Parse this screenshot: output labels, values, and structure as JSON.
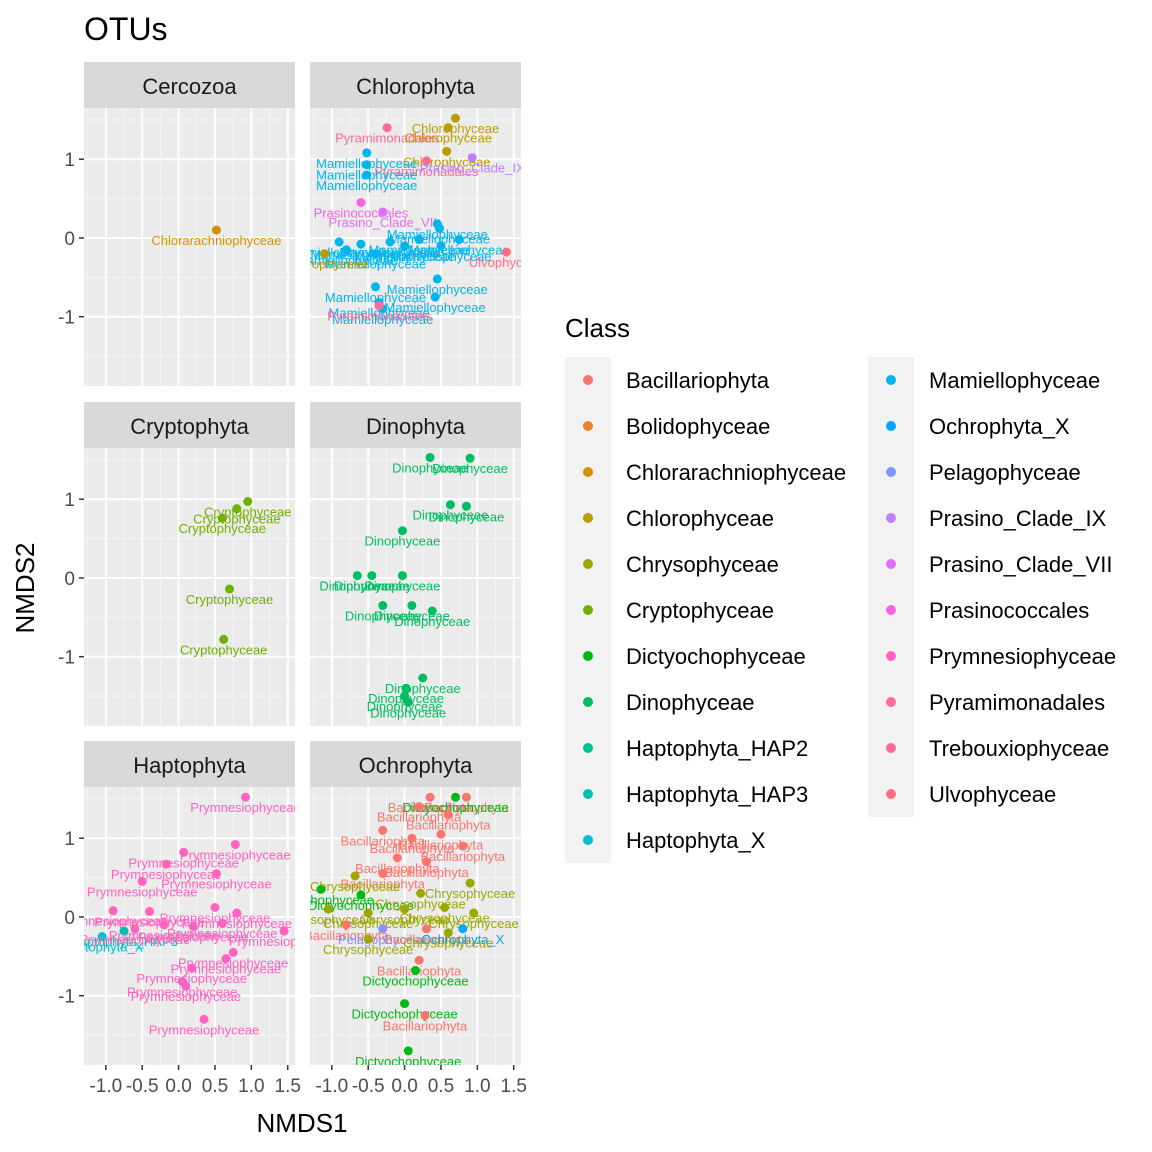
{
  "chart_data": {
    "type": "scatter",
    "title": "OTUs",
    "xlabel": "NMDS1",
    "ylabel": "NMDS2",
    "xlim": [
      -1.3,
      1.6
    ],
    "ylim": [
      -1.88,
      1.65
    ],
    "xticks": [
      "-1.0",
      "-0.5",
      "0.0",
      "0.5",
      "1.0",
      "1.5"
    ],
    "yticks": [
      "1",
      "0",
      "-1"
    ],
    "legend": {
      "title": "Class",
      "items": [
        {
          "name": "Bacillariophyta",
          "color": "#F8766D"
        },
        {
          "name": "Bolidophyceae",
          "color": "#E9842C"
        },
        {
          "name": "Chlorarachniophyceae",
          "color": "#D69100"
        },
        {
          "name": "Chlorophyceae",
          "color": "#BC9D00"
        },
        {
          "name": "Chrysophyceae",
          "color": "#9CA700"
        },
        {
          "name": "Cryptophyceae",
          "color": "#6FB000"
        },
        {
          "name": "Dictyochophyceae",
          "color": "#00B813"
        },
        {
          "name": "Dinophyceae",
          "color": "#00BD61"
        },
        {
          "name": "Haptophyta_HAP2",
          "color": "#00C08E"
        },
        {
          "name": "Haptophyta_HAP3",
          "color": "#00C0B4"
        },
        {
          "name": "Haptophyta_X",
          "color": "#00BDD4"
        },
        {
          "name": "Mamiellophyceae",
          "color": "#00B5EE"
        },
        {
          "name": "Ochrophyta_X",
          "color": "#00A7FF"
        },
        {
          "name": "Pelagophyceae",
          "color": "#7F96FF"
        },
        {
          "name": "Prasino_Clade_IX",
          "color": "#BC81FF"
        },
        {
          "name": "Prasino_Clade_VII",
          "color": "#E26EF7"
        },
        {
          "name": "Prasinococcales",
          "color": "#F863DF"
        },
        {
          "name": "Prymnesiophyceae",
          "color": "#FF62BF"
        },
        {
          "name": "Pyramimonadales",
          "color": "#FF6A9A"
        },
        {
          "name": "Trebouxiophyceae",
          "color": "#FF6C91"
        },
        {
          "name": "Ulvophyceae",
          "color": "#FF6E85"
        }
      ]
    },
    "panels": [
      {
        "name": "Cercozoa",
        "points": [
          {
            "x": 0.52,
            "y": 0.1,
            "class": "Chlorarachniophyceae",
            "label": "Chlorarachniophyceae"
          }
        ]
      },
      {
        "name": "Chlorophyta",
        "points": [
          {
            "x": -0.24,
            "y": 1.4,
            "class": "Pyramimonadales",
            "label": "Pyramimonadales"
          },
          {
            "x": 0.7,
            "y": 1.52,
            "class": "Chlorophyceae",
            "label": "Chlorophyceae"
          },
          {
            "x": 0.6,
            "y": 1.4,
            "class": "Chlorophyceae",
            "label": "Chlorophyceae"
          },
          {
            "x": 0.58,
            "y": 1.1,
            "class": "Chlorophyceae",
            "label": "Chlorophyceae"
          },
          {
            "x": 0.3,
            "y": 0.98,
            "class": "Pyramimonadales",
            "label": "Pyramimonadales"
          },
          {
            "x": 0.93,
            "y": 1.02,
            "class": "Prasino_Clade_IX",
            "label": "Prasino_Clade_IX"
          },
          {
            "x": -0.52,
            "y": 1.08,
            "class": "Mamiellophyceae",
            "label": "Mamiellophyceae"
          },
          {
            "x": -0.52,
            "y": 0.93,
            "class": "Mamiellophyceae",
            "label": "Mamiellophyceae"
          },
          {
            "x": -0.52,
            "y": 0.8,
            "class": "Mamiellophyceae",
            "label": "Mamiellophyceae"
          },
          {
            "x": -0.6,
            "y": 0.45,
            "class": "Prasinococcales",
            "label": "Prasinococcales"
          },
          {
            "x": -0.3,
            "y": 0.33,
            "class": "Prasino_Clade_VII",
            "label": "Prasino_Clade_VII"
          },
          {
            "x": 0.45,
            "y": 0.18,
            "class": "Mamiellophyceae",
            "label": "Mamiellophyceae"
          },
          {
            "x": 0.48,
            "y": 0.12,
            "class": "Mamiellophyceae",
            "label": "Mamiellophyceae"
          },
          {
            "x": -0.9,
            "y": -0.05,
            "class": "Mamiellophyceae",
            "label": "Mamiellophyceae"
          },
          {
            "x": -0.8,
            "y": -0.15,
            "class": "Mamiellophyceae",
            "label": "Mamiellophyceae"
          },
          {
            "x": -0.6,
            "y": -0.08,
            "class": "Mamiellophyceae",
            "label": "Mamiellophyceae"
          },
          {
            "x": -0.4,
            "y": -0.2,
            "class": "Mamiellophyceae",
            "label": "Mamiellophyceae"
          },
          {
            "x": -0.2,
            "y": -0.05,
            "class": "Mamiellophyceae",
            "label": "Mamiellophyceae"
          },
          {
            "x": 0.0,
            "y": -0.1,
            "class": "Mamiellophyceae",
            "label": "Mamiellophyceae"
          },
          {
            "x": 0.2,
            "y": -0.02,
            "class": "Mamiellophyceae",
            "label": "Mamiellophyceae"
          },
          {
            "x": 0.5,
            "y": -0.1,
            "class": "Mamiellophyceae",
            "label": "Mamiellophyceae"
          },
          {
            "x": 0.75,
            "y": -0.02,
            "class": "Mamiellophyceae",
            "label": "Mamiellophyceae"
          },
          {
            "x": -1.1,
            "y": -0.2,
            "class": "Chlorophyceae",
            "label": "Chlorophyceae"
          },
          {
            "x": 1.4,
            "y": -0.18,
            "class": "Ulvophyceae",
            "label": "Ulvophyceae"
          },
          {
            "x": 0.45,
            "y": -0.52,
            "class": "Mamiellophyceae",
            "label": "Mamiellophyceae"
          },
          {
            "x": -0.4,
            "y": -0.62,
            "class": "Mamiellophyceae",
            "label": "Mamiellophyceae"
          },
          {
            "x": 0.42,
            "y": -0.75,
            "class": "Mamiellophyceae",
            "label": "Mamiellophyceae"
          },
          {
            "x": -0.35,
            "y": -0.82,
            "class": "Mamiellophyceae",
            "label": "Mamiellophyceae"
          },
          {
            "x": -0.3,
            "y": -0.9,
            "class": "Mamiellophyceae",
            "label": "Mamiellophyceae"
          },
          {
            "x": -0.35,
            "y": -0.86,
            "class": "Pyramimonadales",
            "label": "Pyramimonadales"
          }
        ]
      },
      {
        "name": "Cryptophyta",
        "points": [
          {
            "x": 0.95,
            "y": 0.97,
            "class": "Cryptophyceae",
            "label": "Cryptophyceae"
          },
          {
            "x": 0.8,
            "y": 0.88,
            "class": "Cryptophyceae",
            "label": "Cryptophyceae"
          },
          {
            "x": 0.6,
            "y": 0.76,
            "class": "Cryptophyceae",
            "label": "Cryptophyceae"
          },
          {
            "x": 0.7,
            "y": -0.14,
            "class": "Cryptophyceae",
            "label": "Cryptophyceae"
          },
          {
            "x": 0.62,
            "y": -0.78,
            "class": "Cryptophyceae",
            "label": "Cryptophyceae"
          }
        ]
      },
      {
        "name": "Dinophyta",
        "points": [
          {
            "x": 0.35,
            "y": 1.53,
            "class": "Dinophyceae",
            "label": "Dinophyceae"
          },
          {
            "x": 0.9,
            "y": 1.52,
            "class": "Dinophyceae",
            "label": "Dinophyceae"
          },
          {
            "x": 0.63,
            "y": 0.93,
            "class": "Dinophyceae",
            "label": "Dinophyceae"
          },
          {
            "x": 0.85,
            "y": 0.91,
            "class": "Dinophyceae",
            "label": "Dinophyceae"
          },
          {
            "x": -0.03,
            "y": 0.6,
            "class": "Dinophyceae",
            "label": "Dinophyceae"
          },
          {
            "x": -0.65,
            "y": 0.03,
            "class": "Dinophyceae",
            "label": "Dinophyceae"
          },
          {
            "x": -0.45,
            "y": 0.03,
            "class": "Dinophyceae",
            "label": "Dinophyceae"
          },
          {
            "x": -0.03,
            "y": 0.03,
            "class": "Dinophyceae",
            "label": "Dinophyceae"
          },
          {
            "x": -0.3,
            "y": -0.35,
            "class": "Dinophyceae",
            "label": "Dinophyceae"
          },
          {
            "x": 0.1,
            "y": -0.35,
            "class": "Dinophyceae",
            "label": "Dinophyceae"
          },
          {
            "x": 0.38,
            "y": -0.42,
            "class": "Dinophyceae",
            "label": "Dinophyceae"
          },
          {
            "x": 0.25,
            "y": -1.27,
            "class": "Dinophyceae",
            "label": "Dinophyceae"
          },
          {
            "x": 0.02,
            "y": -1.4,
            "class": "Dinophyceae",
            "label": "Dinophyceae"
          },
          {
            "x": 0.0,
            "y": -1.5,
            "class": "Dinophyceae",
            "label": "Dinophyceae"
          },
          {
            "x": 0.05,
            "y": -1.58,
            "class": "Dinophyceae",
            "label": "Dinophyceae"
          }
        ]
      },
      {
        "name": "Haptophyta",
        "points": [
          {
            "x": 0.92,
            "y": 1.52,
            "class": "Prymnesiophyceae",
            "label": "Prymnesiophyceae"
          },
          {
            "x": 0.78,
            "y": 0.92,
            "class": "Prymnesiophyceae",
            "label": "Prymnesiophyceae"
          },
          {
            "x": 0.07,
            "y": 0.82,
            "class": "Prymnesiophyceae",
            "label": "Prymnesiophyceae"
          },
          {
            "x": -0.17,
            "y": 0.67,
            "class": "Prymnesiophyceae",
            "label": "Prymnesiophyceae"
          },
          {
            "x": 0.52,
            "y": 0.55,
            "class": "Prymnesiophyceae",
            "label": "Prymnesiophyceae"
          },
          {
            "x": -0.5,
            "y": 0.45,
            "class": "Prymnesiophyceae",
            "label": "Prymnesiophyceae"
          },
          {
            "x": -0.9,
            "y": 0.08,
            "class": "Prymnesiophyceae",
            "label": "Prymnesiophyceae"
          },
          {
            "x": -0.4,
            "y": 0.07,
            "class": "Prymnesiophyceae",
            "label": "Prymnesiophyceae"
          },
          {
            "x": 0.5,
            "y": 0.12,
            "class": "Prymnesiophyceae",
            "label": "Prymnesiophyceae"
          },
          {
            "x": 0.8,
            "y": 0.05,
            "class": "Prymnesiophyceae",
            "label": "Prymnesiophyceae"
          },
          {
            "x": 1.45,
            "y": -0.18,
            "class": "Prymnesiophyceae",
            "label": "Prymnesiophyceae"
          },
          {
            "x": -1.05,
            "y": -0.25,
            "class": "Haptophyta_X",
            "label": "Haptophyta_X"
          },
          {
            "x": -0.75,
            "y": -0.18,
            "class": "Haptophyta_HAP3",
            "label": "Haptophyta_HAP3"
          },
          {
            "x": -0.6,
            "y": -0.15,
            "class": "Prymnesiophyceae",
            "label": "Prymnesiophyceae"
          },
          {
            "x": -0.2,
            "y": -0.1,
            "class": "Prymnesiophyceae",
            "label": "Prymnesiophyceae"
          },
          {
            "x": 0.2,
            "y": -0.12,
            "class": "Prymnesiophyceae",
            "label": "Prymnesiophyceae"
          },
          {
            "x": 0.6,
            "y": -0.08,
            "class": "Prymnesiophyceae",
            "label": "Prymnesiophyceae"
          },
          {
            "x": 0.75,
            "y": -0.45,
            "class": "Prymnesiophyceae",
            "label": "Prymnesiophyceae"
          },
          {
            "x": 0.65,
            "y": -0.53,
            "class": "Prymnesiophyceae",
            "label": "Prymnesiophyceae"
          },
          {
            "x": 0.18,
            "y": -0.65,
            "class": "Prymnesiophyceae",
            "label": "Prymnesiophyceae"
          },
          {
            "x": 0.05,
            "y": -0.82,
            "class": "Prymnesiophyceae",
            "label": "Prymnesiophyceae"
          },
          {
            "x": 0.1,
            "y": -0.88,
            "class": "Prymnesiophyceae",
            "label": "Prymnesiophyceae"
          },
          {
            "x": 0.35,
            "y": -1.3,
            "class": "Prymnesiophyceae",
            "label": "Prymnesiophyceae"
          }
        ]
      },
      {
        "name": "Ochrophyta",
        "points": [
          {
            "x": 0.35,
            "y": 1.52,
            "class": "Bacillariophyta",
            "label": "Bacillariophyta"
          },
          {
            "x": 0.85,
            "y": 1.52,
            "class": "Bacillariophyta",
            "label": "Bacillariophyta"
          },
          {
            "x": 0.7,
            "y": 1.52,
            "class": "Dictyochophyceae",
            "label": "Dictyochophyceae"
          },
          {
            "x": 0.2,
            "y": 1.4,
            "class": "Bacillariophyta",
            "label": "Bacillariophyta"
          },
          {
            "x": 0.6,
            "y": 1.3,
            "class": "Bacillariophyta",
            "label": "Bacillariophyta"
          },
          {
            "x": -0.3,
            "y": 1.1,
            "class": "Bacillariophyta",
            "label": "Bacillariophyta"
          },
          {
            "x": 0.1,
            "y": 1.0,
            "class": "Bacillariophyta",
            "label": "Bacillariophyta"
          },
          {
            "x": 0.5,
            "y": 1.05,
            "class": "Bacillariophyta",
            "label": "Bacillariophyta"
          },
          {
            "x": 0.8,
            "y": 0.9,
            "class": "Bacillariophyta",
            "label": "Bacillariophyta"
          },
          {
            "x": -0.1,
            "y": 0.75,
            "class": "Bacillariophyta",
            "label": "Bacillariophyta"
          },
          {
            "x": 0.3,
            "y": 0.7,
            "class": "Bacillariophyta",
            "label": "Bacillariophyta"
          },
          {
            "x": -0.3,
            "y": 0.55,
            "class": "Bacillariophyta",
            "label": "Bacillariophyta"
          },
          {
            "x": -0.68,
            "y": 0.52,
            "class": "Chrysophyceae",
            "label": "Chrysophyceae"
          },
          {
            "x": 0.9,
            "y": 0.43,
            "class": "Chrysophyceae",
            "label": "Chrysophyceae"
          },
          {
            "x": -1.15,
            "y": 0.35,
            "class": "Dictyochophyceae",
            "label": "Dictyochophyceae"
          },
          {
            "x": -0.6,
            "y": 0.28,
            "class": "Dictyochophyceae",
            "label": "Dictyochophyceae"
          },
          {
            "x": 0.22,
            "y": 0.3,
            "class": "Chrysophyceae",
            "label": "Chrysophyceae"
          },
          {
            "x": -1.05,
            "y": 0.1,
            "class": "Chrysophyceae",
            "label": "Chrysophyceae"
          },
          {
            "x": -0.5,
            "y": 0.05,
            "class": "Chrysophyceae",
            "label": "Chrysophyceae"
          },
          {
            "x": 0.0,
            "y": 0.1,
            "class": "Chrysophyceae",
            "label": "Chrysophyceae"
          },
          {
            "x": 0.55,
            "y": 0.12,
            "class": "Chrysophyceae",
            "label": "Chrysophyceae"
          },
          {
            "x": 0.95,
            "y": 0.05,
            "class": "Chrysophyceae",
            "label": "Chrysophyceae"
          },
          {
            "x": -0.8,
            "y": -0.1,
            "class": "Bacillariophyta",
            "label": "Bacillariophyta"
          },
          {
            "x": -0.3,
            "y": -0.15,
            "class": "Pelagophyceae",
            "label": "Pelagophyceae"
          },
          {
            "x": 0.3,
            "y": -0.15,
            "class": "Bacillariophyta",
            "label": "Bacillariophyta"
          },
          {
            "x": 0.8,
            "y": -0.15,
            "class": "Ochrophyta_X",
            "label": "Ochrophyta_X"
          },
          {
            "x": 0.6,
            "y": -0.2,
            "class": "Chrysophyceae",
            "label": "Chrysophyceae"
          },
          {
            "x": -0.5,
            "y": -0.28,
            "class": "Chrysophyceae",
            "label": "Chrysophyceae"
          },
          {
            "x": 0.2,
            "y": -0.55,
            "class": "Bacillariophyta",
            "label": "Bacillariophyta"
          },
          {
            "x": 0.15,
            "y": -0.68,
            "class": "Dictyochophyceae",
            "label": "Dictyochophyceae"
          },
          {
            "x": 0.0,
            "y": -1.1,
            "class": "Dictyochophyceae",
            "label": "Dictyochophyceae"
          },
          {
            "x": 0.28,
            "y": -1.25,
            "class": "Bacillariophyta",
            "label": "Bacillariophyta"
          },
          {
            "x": 0.05,
            "y": -1.7,
            "class": "Dictyochophyceae",
            "label": "Dictyochophyceae"
          }
        ]
      }
    ]
  }
}
